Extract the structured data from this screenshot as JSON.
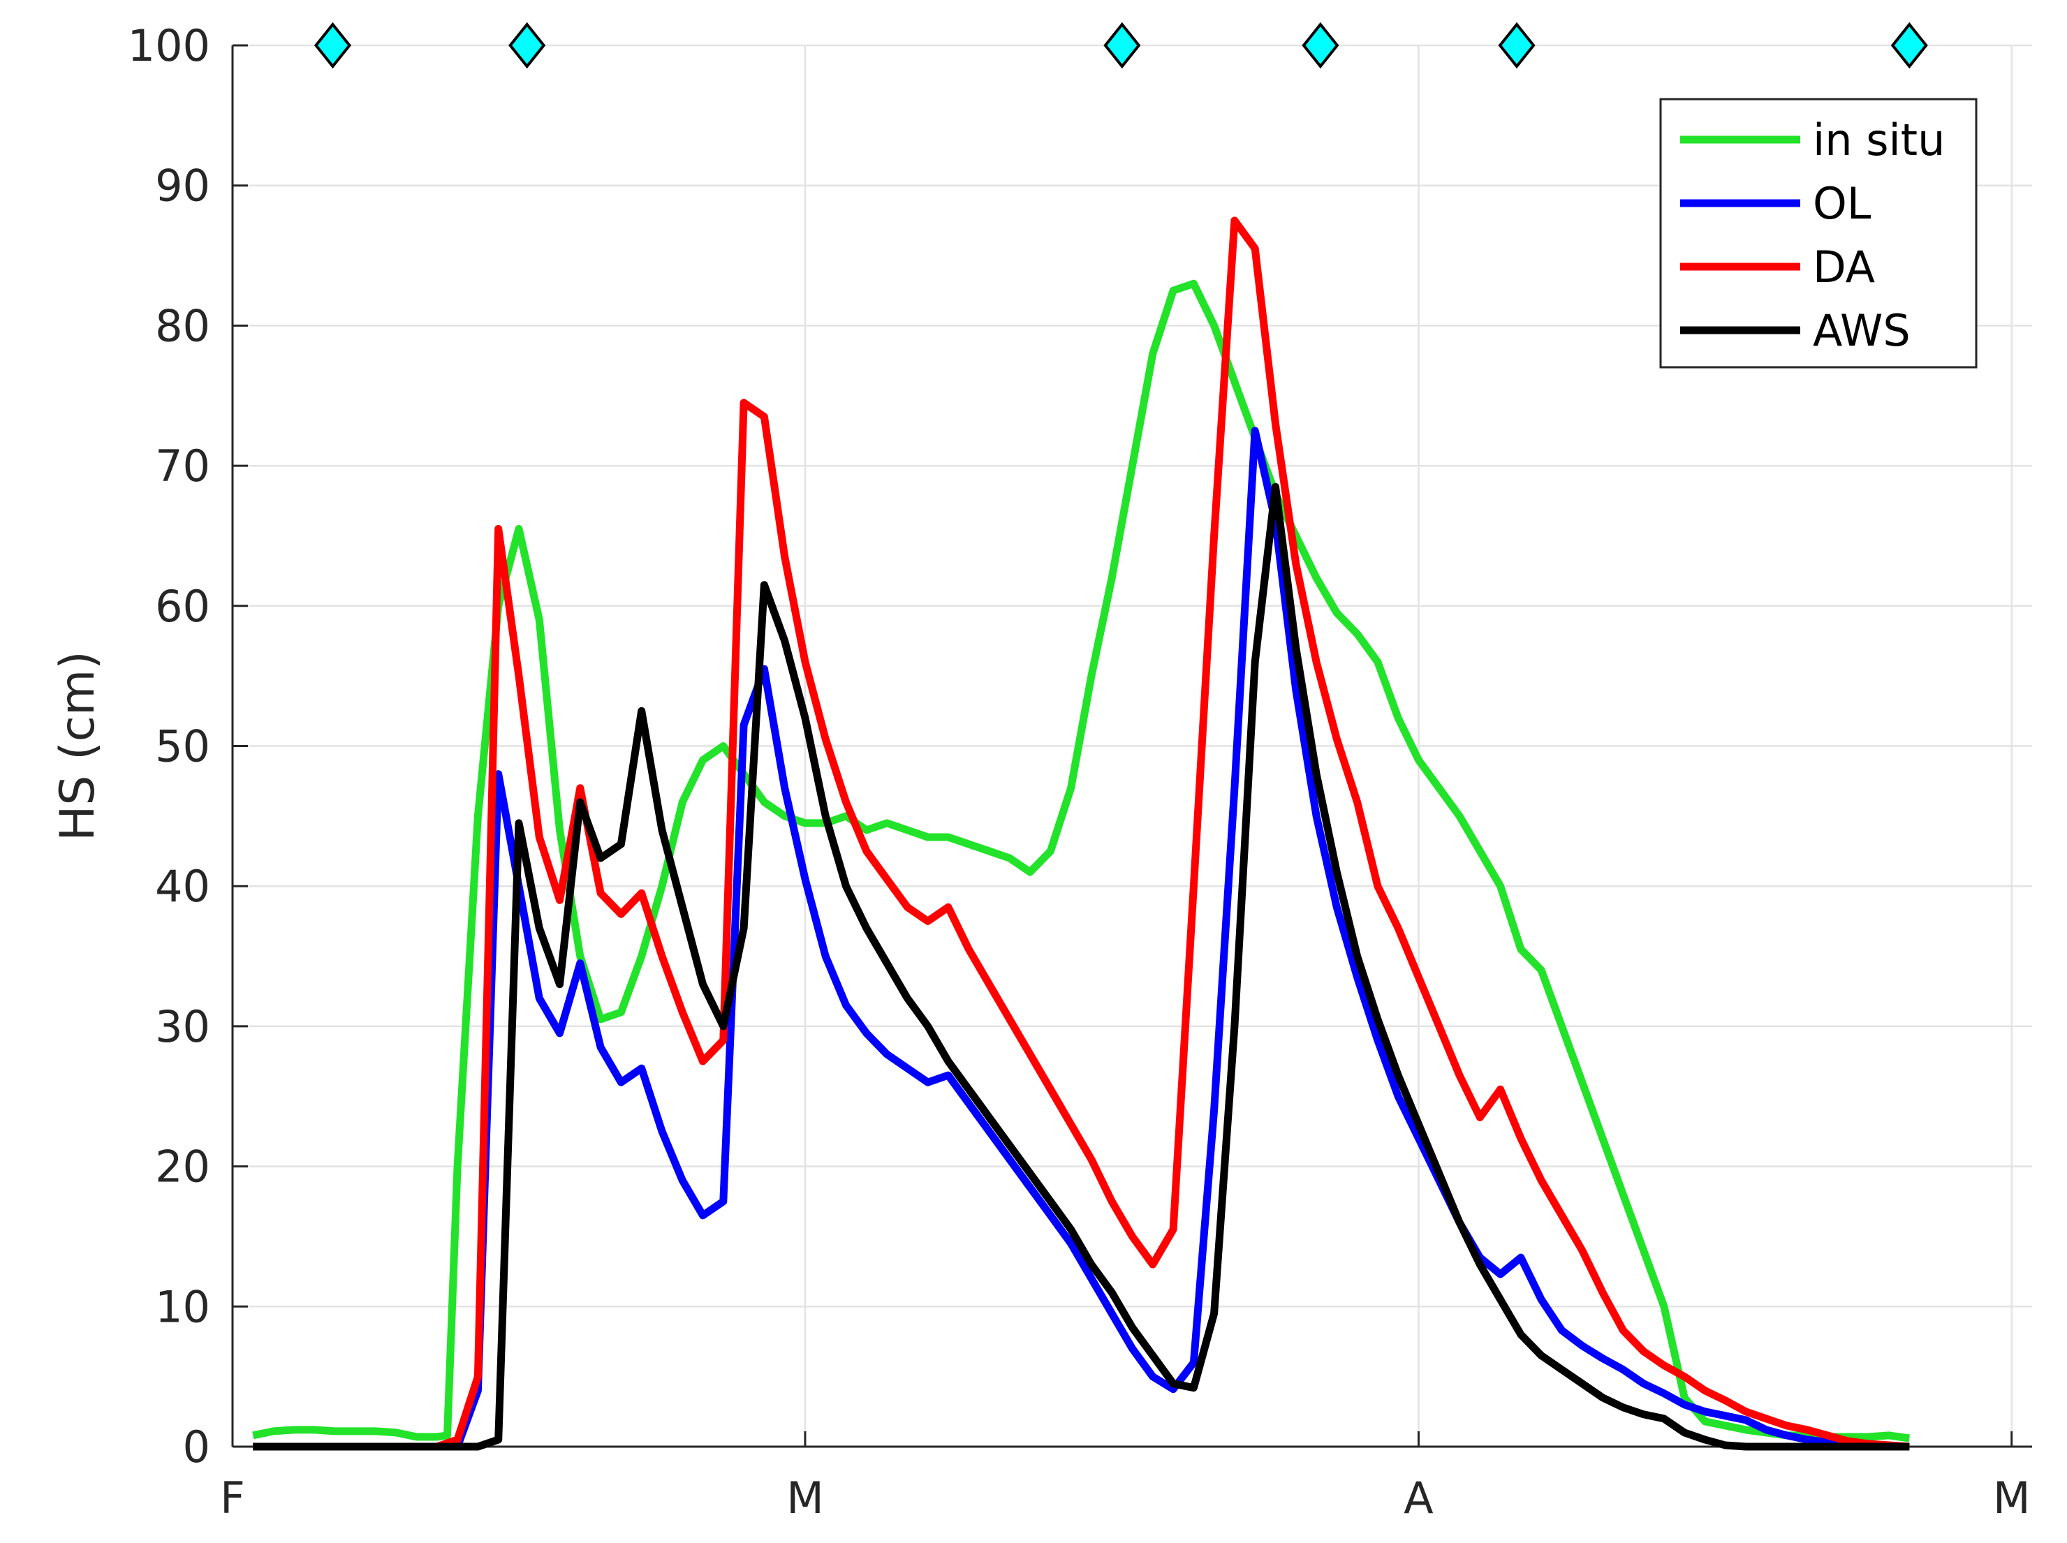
{
  "chart_data": {
    "type": "line",
    "ylabel": "HS (cm)",
    "xlabel": "",
    "xlim": [
      0,
      88
    ],
    "ylim": [
      0,
      100
    ],
    "x_ticks": [
      {
        "label": "F",
        "x": 0
      },
      {
        "label": "M",
        "x": 28
      },
      {
        "label": "A",
        "x": 58
      },
      {
        "label": "M",
        "x": 87
      }
    ],
    "y_ticks": [
      0,
      10,
      20,
      30,
      40,
      50,
      60,
      70,
      80,
      90,
      100
    ],
    "grid": true,
    "legend_position": "top-right",
    "markers": {
      "y": 100,
      "x": [
        4.9,
        14.4,
        43.5,
        53.2,
        62.8,
        82.0
      ],
      "color": "#00ffff",
      "shape": "diamond"
    },
    "series": [
      {
        "name": "in situ",
        "color": "#22e22a",
        "points": [
          [
            1,
            0.8
          ],
          [
            2,
            1.1
          ],
          [
            3,
            1.2
          ],
          [
            4,
            1.2
          ],
          [
            5,
            1.1
          ],
          [
            6,
            1.1
          ],
          [
            7,
            1.1
          ],
          [
            8,
            1.0
          ],
          [
            9,
            0.7
          ],
          [
            10,
            0.7
          ],
          [
            10.5,
            0.8
          ],
          [
            11,
            20
          ],
          [
            12,
            45
          ],
          [
            13,
            60
          ],
          [
            14,
            65.5
          ],
          [
            15,
            59
          ],
          [
            16,
            44
          ],
          [
            17,
            35
          ],
          [
            18,
            30.5
          ],
          [
            19,
            31
          ],
          [
            20,
            35
          ],
          [
            21,
            40
          ],
          [
            22,
            46
          ],
          [
            23,
            49
          ],
          [
            24,
            50
          ],
          [
            25,
            48
          ],
          [
            26,
            46
          ],
          [
            27,
            45
          ],
          [
            28,
            44.5
          ],
          [
            29,
            44.5
          ],
          [
            30,
            45
          ],
          [
            31,
            44
          ],
          [
            32,
            44.5
          ],
          [
            33,
            44
          ],
          [
            34,
            43.5
          ],
          [
            35,
            43.5
          ],
          [
            36,
            43
          ],
          [
            37,
            42.5
          ],
          [
            38,
            42
          ],
          [
            39,
            41
          ],
          [
            40,
            42.5
          ],
          [
            41,
            47
          ],
          [
            42,
            55
          ],
          [
            43,
            62
          ],
          [
            44,
            70
          ],
          [
            45,
            78
          ],
          [
            46,
            82.5
          ],
          [
            47,
            83
          ],
          [
            48,
            80
          ],
          [
            49,
            76
          ],
          [
            50,
            72
          ],
          [
            51,
            68
          ],
          [
            52,
            65
          ],
          [
            53,
            62
          ],
          [
            54,
            59.5
          ],
          [
            55,
            58
          ],
          [
            56,
            56
          ],
          [
            57,
            52
          ],
          [
            58,
            49
          ],
          [
            59,
            47
          ],
          [
            60,
            45
          ],
          [
            61,
            42.5
          ],
          [
            62,
            40
          ],
          [
            63,
            35.5
          ],
          [
            64,
            34
          ],
          [
            65,
            30
          ],
          [
            66,
            26
          ],
          [
            67,
            22
          ],
          [
            68,
            18
          ],
          [
            69,
            14
          ],
          [
            70,
            10
          ],
          [
            71,
            3.5
          ],
          [
            72,
            1.8
          ],
          [
            73,
            1.5
          ],
          [
            74,
            1.2
          ],
          [
            75,
            1.0
          ],
          [
            76,
            0.8
          ],
          [
            77,
            0.8
          ],
          [
            78,
            0.7
          ],
          [
            79,
            0.7
          ],
          [
            80,
            0.7
          ],
          [
            81,
            0.8
          ],
          [
            82,
            0.6
          ]
        ]
      },
      {
        "name": "OL",
        "color": "#0000ff",
        "points": [
          [
            1,
            0
          ],
          [
            2,
            0
          ],
          [
            3,
            0
          ],
          [
            4,
            0
          ],
          [
            5,
            0
          ],
          [
            6,
            0
          ],
          [
            7,
            0
          ],
          [
            8,
            0
          ],
          [
            9,
            0
          ],
          [
            10,
            0
          ],
          [
            11,
            0
          ],
          [
            12,
            4
          ],
          [
            13,
            48
          ],
          [
            14,
            40
          ],
          [
            15,
            32
          ],
          [
            16,
            29.5
          ],
          [
            17,
            34.5
          ],
          [
            18,
            28.5
          ],
          [
            19,
            26
          ],
          [
            20,
            27
          ],
          [
            21,
            22.5
          ],
          [
            22,
            19
          ],
          [
            23,
            16.5
          ],
          [
            24,
            17.5
          ],
          [
            25,
            51.5
          ],
          [
            26,
            55.5
          ],
          [
            27,
            47
          ],
          [
            28,
            40.5
          ],
          [
            29,
            35
          ],
          [
            30,
            31.5
          ],
          [
            31,
            29.5
          ],
          [
            32,
            28
          ],
          [
            33,
            27
          ],
          [
            34,
            26
          ],
          [
            35,
            26.5
          ],
          [
            36,
            24.5
          ],
          [
            37,
            22.5
          ],
          [
            38,
            20.5
          ],
          [
            39,
            18.5
          ],
          [
            40,
            16.5
          ],
          [
            41,
            14.5
          ],
          [
            42,
            12
          ],
          [
            43,
            9.5
          ],
          [
            44,
            7
          ],
          [
            45,
            5
          ],
          [
            46,
            4.1
          ],
          [
            47,
            6
          ],
          [
            48,
            24
          ],
          [
            49,
            47
          ],
          [
            50,
            72.5
          ],
          [
            51,
            66
          ],
          [
            52,
            54
          ],
          [
            53,
            45
          ],
          [
            54,
            38.5
          ],
          [
            55,
            33.5
          ],
          [
            56,
            29
          ],
          [
            57,
            25
          ],
          [
            58,
            22
          ],
          [
            59,
            19
          ],
          [
            60,
            16
          ],
          [
            61,
            13.5
          ],
          [
            62,
            12.3
          ],
          [
            63,
            13.5
          ],
          [
            64,
            10.5
          ],
          [
            65,
            8.3
          ],
          [
            66,
            7.2
          ],
          [
            67,
            6.3
          ],
          [
            68,
            5.5
          ],
          [
            69,
            4.5
          ],
          [
            70,
            3.8
          ],
          [
            71,
            3.0
          ],
          [
            72,
            2.5
          ],
          [
            73,
            2.2
          ],
          [
            74,
            1.9
          ],
          [
            75,
            1.2
          ],
          [
            76,
            0.8
          ],
          [
            77,
            0.5
          ],
          [
            78,
            0.3
          ],
          [
            79,
            0.2
          ],
          [
            80,
            0.1
          ],
          [
            81,
            0
          ],
          [
            82,
            0
          ]
        ]
      },
      {
        "name": "DA",
        "color": "#ff0000",
        "points": [
          [
            1,
            0
          ],
          [
            2,
            0
          ],
          [
            3,
            0
          ],
          [
            4,
            0
          ],
          [
            5,
            0
          ],
          [
            6,
            0
          ],
          [
            7,
            0
          ],
          [
            8,
            0
          ],
          [
            9,
            0
          ],
          [
            10,
            0
          ],
          [
            11,
            0.5
          ],
          [
            12,
            5
          ],
          [
            13,
            65.5
          ],
          [
            14,
            55
          ],
          [
            15,
            43.5
          ],
          [
            16,
            39
          ],
          [
            17,
            47
          ],
          [
            18,
            39.5
          ],
          [
            19,
            38
          ],
          [
            20,
            39.5
          ],
          [
            21,
            35
          ],
          [
            22,
            31
          ],
          [
            23,
            27.5
          ],
          [
            24,
            29
          ],
          [
            25,
            74.5
          ],
          [
            26,
            73.5
          ],
          [
            27,
            63.5
          ],
          [
            28,
            56
          ],
          [
            29,
            50.5
          ],
          [
            30,
            46
          ],
          [
            31,
            42.5
          ],
          [
            32,
            40.5
          ],
          [
            33,
            38.5
          ],
          [
            34,
            37.5
          ],
          [
            35,
            38.5
          ],
          [
            36,
            35.5
          ],
          [
            37,
            33
          ],
          [
            38,
            30.5
          ],
          [
            39,
            28
          ],
          [
            40,
            25.5
          ],
          [
            41,
            23
          ],
          [
            42,
            20.5
          ],
          [
            43,
            17.5
          ],
          [
            44,
            15
          ],
          [
            45,
            13
          ],
          [
            46,
            15.5
          ],
          [
            47,
            40
          ],
          [
            48,
            65
          ],
          [
            49,
            87.5
          ],
          [
            50,
            85.5
          ],
          [
            51,
            73
          ],
          [
            52,
            63
          ],
          [
            53,
            56
          ],
          [
            54,
            50.5
          ],
          [
            55,
            46
          ],
          [
            56,
            40
          ],
          [
            57,
            37
          ],
          [
            58,
            33.5
          ],
          [
            59,
            30
          ],
          [
            60,
            26.5
          ],
          [
            61,
            23.5
          ],
          [
            62,
            25.5
          ],
          [
            63,
            22
          ],
          [
            64,
            19
          ],
          [
            65,
            16.5
          ],
          [
            66,
            14
          ],
          [
            67,
            11
          ],
          [
            68,
            8.3
          ],
          [
            69,
            6.8
          ],
          [
            70,
            5.8
          ],
          [
            71,
            5
          ],
          [
            72,
            4
          ],
          [
            73,
            3.3
          ],
          [
            74,
            2.5
          ],
          [
            75,
            2
          ],
          [
            76,
            1.5
          ],
          [
            77,
            1.2
          ],
          [
            78,
            0.8
          ],
          [
            79,
            0.4
          ],
          [
            80,
            0.2
          ],
          [
            81,
            0.1
          ],
          [
            82,
            0
          ]
        ]
      },
      {
        "name": "AWS",
        "color": "#000000",
        "points": [
          [
            1,
            0
          ],
          [
            2,
            0
          ],
          [
            3,
            0
          ],
          [
            4,
            0
          ],
          [
            5,
            0
          ],
          [
            6,
            0
          ],
          [
            7,
            0
          ],
          [
            8,
            0
          ],
          [
            9,
            0
          ],
          [
            10,
            0
          ],
          [
            11,
            0
          ],
          [
            12,
            0
          ],
          [
            13,
            0.5
          ],
          [
            14,
            44.5
          ],
          [
            15,
            37
          ],
          [
            16,
            33
          ],
          [
            17,
            46
          ],
          [
            18,
            42
          ],
          [
            19,
            43
          ],
          [
            20,
            52.5
          ],
          [
            21,
            44
          ],
          [
            22,
            38.5
          ],
          [
            23,
            33
          ],
          [
            24,
            30
          ],
          [
            25,
            37
          ],
          [
            26,
            61.5
          ],
          [
            27,
            57.5
          ],
          [
            28,
            52
          ],
          [
            29,
            45
          ],
          [
            30,
            40
          ],
          [
            31,
            37
          ],
          [
            32,
            34.5
          ],
          [
            33,
            32
          ],
          [
            34,
            30
          ],
          [
            35,
            27.5
          ],
          [
            36,
            25.5
          ],
          [
            37,
            23.5
          ],
          [
            38,
            21.5
          ],
          [
            39,
            19.5
          ],
          [
            40,
            17.5
          ],
          [
            41,
            15.5
          ],
          [
            42,
            13
          ],
          [
            43,
            11
          ],
          [
            44,
            8.5
          ],
          [
            45,
            6.5
          ],
          [
            46,
            4.5
          ],
          [
            47,
            4.2
          ],
          [
            48,
            9.5
          ],
          [
            49,
            30
          ],
          [
            50,
            56
          ],
          [
            51,
            68.5
          ],
          [
            52,
            57
          ],
          [
            53,
            48
          ],
          [
            54,
            41
          ],
          [
            55,
            35
          ],
          [
            56,
            30.5
          ],
          [
            57,
            26.5
          ],
          [
            58,
            23
          ],
          [
            59,
            19.5
          ],
          [
            60,
            16
          ],
          [
            61,
            13
          ],
          [
            62,
            10.5
          ],
          [
            63,
            8
          ],
          [
            64,
            6.5
          ],
          [
            65,
            5.5
          ],
          [
            66,
            4.5
          ],
          [
            67,
            3.5
          ],
          [
            68,
            2.8
          ],
          [
            69,
            2.3
          ],
          [
            70,
            2.0
          ],
          [
            71,
            1.0
          ],
          [
            72,
            0.5
          ],
          [
            73,
            0.1
          ],
          [
            74,
            0
          ],
          [
            75,
            0
          ],
          [
            76,
            0
          ],
          [
            77,
            0
          ],
          [
            78,
            0
          ],
          [
            79,
            0
          ],
          [
            80,
            0
          ],
          [
            81,
            0
          ],
          [
            82,
            0
          ]
        ]
      }
    ]
  }
}
